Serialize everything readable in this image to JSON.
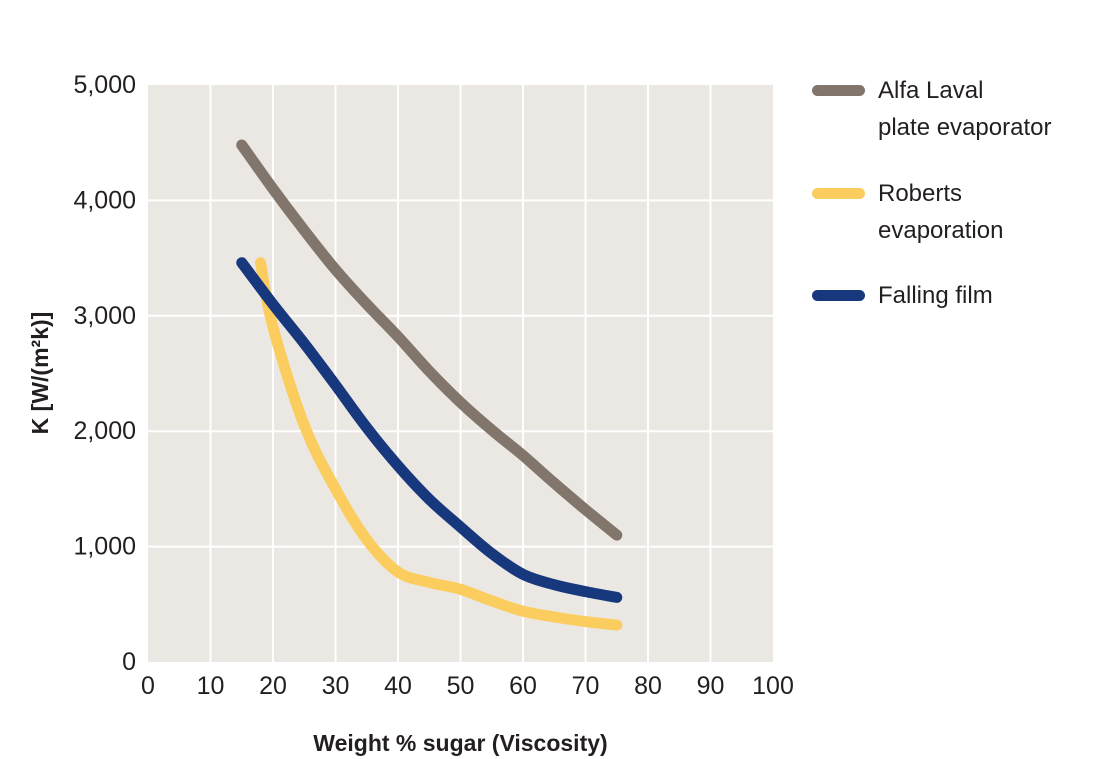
{
  "chart_data": {
    "type": "line",
    "title": "",
    "xlabel": "Weight % sugar (Viscosity)",
    "ylabel": "K [W/(m²k)]",
    "xlim": [
      0,
      100
    ],
    "ylim": [
      0,
      5000
    ],
    "x_ticks": [
      0,
      10,
      20,
      30,
      40,
      50,
      60,
      70,
      80,
      90,
      100
    ],
    "x_tick_labels": [
      "0",
      "10",
      "20",
      "30",
      "40",
      "50",
      "60",
      "70",
      "80",
      "90",
      "100"
    ],
    "y_ticks": [
      0,
      1000,
      2000,
      3000,
      4000,
      5000
    ],
    "y_tick_labels": [
      "0",
      "1,000",
      "2,000",
      "3,000",
      "4,000",
      "5,000"
    ],
    "grid": true,
    "plot_background": "#EBE7E2",
    "gridline_color": "#FFFFFF",
    "tick_label_color": "#231F20",
    "line_width": 11,
    "legend_position": "right",
    "series": [
      {
        "name": "Alfa Laval plate evaporator",
        "legend_lines": [
          "Alfa Laval",
          "plate evaporator"
        ],
        "color": "#81756C",
        "points": [
          [
            15,
            4480
          ],
          [
            20,
            4100
          ],
          [
            25,
            3740
          ],
          [
            30,
            3400
          ],
          [
            35,
            3100
          ],
          [
            40,
            2820
          ],
          [
            45,
            2520
          ],
          [
            50,
            2250
          ],
          [
            55,
            2010
          ],
          [
            60,
            1790
          ],
          [
            65,
            1550
          ],
          [
            70,
            1320
          ],
          [
            75,
            1100
          ]
        ]
      },
      {
        "name": "Roberts evaporation",
        "legend_lines": [
          "Roberts",
          "evaporation"
        ],
        "color": "#FBCD5F",
        "points": [
          [
            18,
            3460
          ],
          [
            20,
            2900
          ],
          [
            25,
            2050
          ],
          [
            30,
            1500
          ],
          [
            35,
            1060
          ],
          [
            40,
            780
          ],
          [
            45,
            690
          ],
          [
            50,
            630
          ],
          [
            55,
            530
          ],
          [
            60,
            440
          ],
          [
            65,
            390
          ],
          [
            70,
            350
          ],
          [
            75,
            320
          ]
        ]
      },
      {
        "name": "Falling film",
        "legend_lines": [
          "Falling film"
        ],
        "color": "#17387D",
        "points": [
          [
            15,
            3460
          ],
          [
            20,
            3100
          ],
          [
            25,
            2760
          ],
          [
            30,
            2400
          ],
          [
            35,
            2030
          ],
          [
            40,
            1700
          ],
          [
            45,
            1410
          ],
          [
            50,
            1170
          ],
          [
            55,
            940
          ],
          [
            60,
            760
          ],
          [
            65,
            670
          ],
          [
            70,
            610
          ],
          [
            75,
            560
          ]
        ]
      }
    ]
  }
}
